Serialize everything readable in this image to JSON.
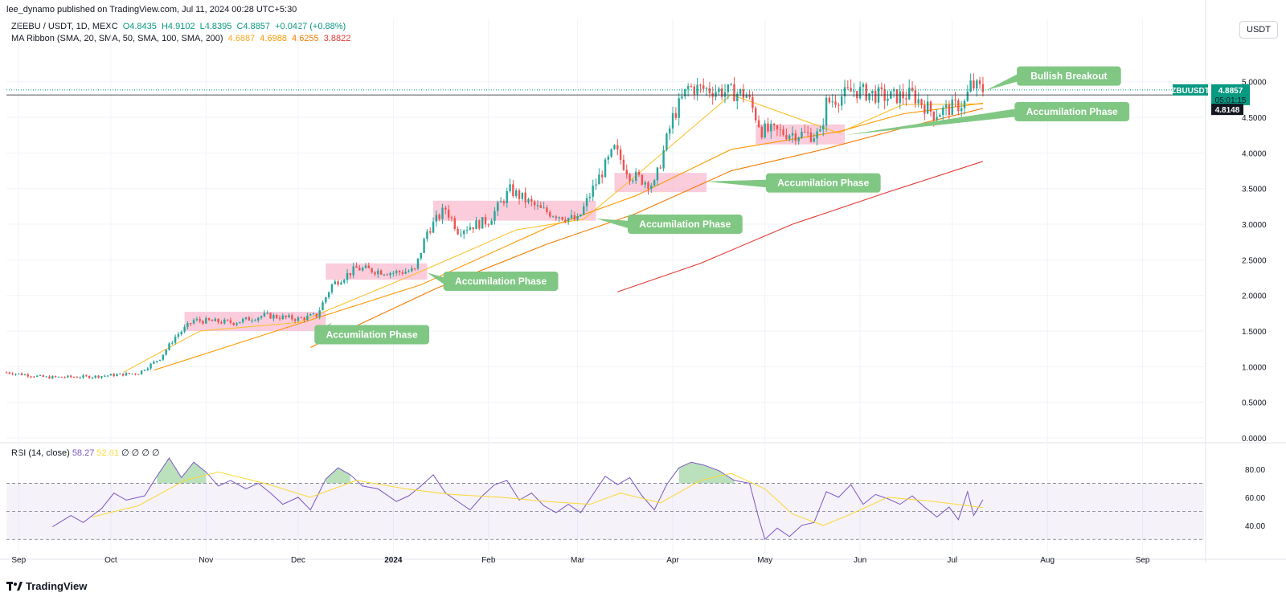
{
  "header": {
    "published": "lee_dynamo published on TradingView.com, Jul 11, 2024 00:28 UTC+5:30"
  },
  "legend": {
    "symbol": "ZEEBU / USDT, 1D, MEXC",
    "o": "O4.8435",
    "h": "H4.9102",
    "l": "L4.8395",
    "c": "C4.8857",
    "chg": "+0.0427 (+0.88%)",
    "ma_title": "MA Ribbon (SMA, 20, SMA, 50, SMA, 100, SMA, 200)",
    "ma_values": [
      "4.6887",
      "4.6988",
      "4.6255",
      "3.8822"
    ],
    "ma_colors": [
      "#f9a825",
      "#ff9800",
      "#f57c00",
      "#e53935"
    ]
  },
  "rsi_legend": {
    "title": "RSI (14, close)",
    "rsi": "58.27",
    "ma": "52.61",
    "placeholders": [
      "∅",
      "∅",
      "∅",
      "∅"
    ]
  },
  "currency_button": "USDT",
  "price_tags": {
    "symbol": "ZBUUSDT",
    "price": "4.8857",
    "timer": "05:01:15",
    "level": "4.8148"
  },
  "footer": {
    "logo_text": "TradingView"
  },
  "colors": {
    "up": "#26a69a",
    "down": "#ef5350",
    "annotation": "#81c784",
    "box": "#f8bbd0",
    "rsi": "#7e57c2",
    "rsi_ma": "#fdd835",
    "tag_green": "#089981"
  },
  "chart_data": [
    {
      "type": "candlestick",
      "title": "ZEEBU / USDT, 1D, MEXC",
      "y_ticks": [
        "0.0000",
        "0.5000",
        "1.0000",
        "1.5000",
        "2.0000",
        "2.5000",
        "3.0000",
        "3.5000",
        "4.0000",
        "4.5000",
        "5.0000"
      ],
      "x_ticks": [
        "Sep",
        "Oct",
        "Nov",
        "Dec",
        "2024",
        "Feb",
        "Mar",
        "Apr",
        "May",
        "Jun",
        "Jul",
        "Aug",
        "Sep"
      ],
      "ylim": [
        0,
        5.2
      ],
      "x_start": "2023-08-28",
      "x_end": "2024-09-21",
      "grid": true,
      "closes": [
        [
          "2023-08-28",
          0.92
        ],
        [
          "2023-09-10",
          0.85
        ],
        [
          "2023-09-25",
          0.86
        ],
        [
          "2023-10-10",
          0.91
        ],
        [
          "2023-10-17",
          1.12
        ],
        [
          "2023-10-22",
          1.42
        ],
        [
          "2023-10-28",
          1.65
        ],
        [
          "2023-11-10",
          1.62
        ],
        [
          "2023-11-20",
          1.72
        ],
        [
          "2023-12-01",
          1.67
        ],
        [
          "2023-12-07",
          1.72
        ],
        [
          "2023-12-12",
          2.15
        ],
        [
          "2023-12-20",
          2.38
        ],
        [
          "2024-01-01",
          2.32
        ],
        [
          "2024-01-08",
          2.35
        ],
        [
          "2024-01-12",
          2.9
        ],
        [
          "2024-01-18",
          3.22
        ],
        [
          "2024-01-22",
          2.92
        ],
        [
          "2024-02-01",
          3.05
        ],
        [
          "2024-02-08",
          3.48
        ],
        [
          "2024-02-18",
          3.2
        ],
        [
          "2024-03-01",
          3.05
        ],
        [
          "2024-03-06",
          3.5
        ],
        [
          "2024-03-13",
          4.05
        ],
        [
          "2024-03-18",
          3.7
        ],
        [
          "2024-03-26",
          3.55
        ],
        [
          "2024-04-01",
          4.5
        ],
        [
          "2024-04-06",
          4.92
        ],
        [
          "2024-04-15",
          4.88
        ],
        [
          "2024-04-25",
          4.82
        ],
        [
          "2024-04-30",
          4.32
        ],
        [
          "2024-05-08",
          4.28
        ],
        [
          "2024-05-19",
          4.25
        ],
        [
          "2024-05-21",
          4.7
        ],
        [
          "2024-05-30",
          4.88
        ],
        [
          "2024-06-10",
          4.78
        ],
        [
          "2024-06-18",
          4.82
        ],
        [
          "2024-06-25",
          4.55
        ],
        [
          "2024-07-05",
          4.7
        ],
        [
          "2024-07-07",
          4.95
        ],
        [
          "2024-07-11",
          4.8857
        ]
      ],
      "series": [
        {
          "name": "SMA 20",
          "points": [
            [
              "2023-10-05",
              0.92
            ],
            [
              "2023-10-30",
              1.5
            ],
            [
              "2023-12-01",
              1.62
            ],
            [
              "2024-01-08",
              2.3
            ],
            [
              "2024-02-10",
              2.92
            ],
            [
              "2024-03-03",
              3.07
            ],
            [
              "2024-03-20",
              3.68
            ],
            [
              "2024-04-20",
              4.82
            ],
            [
              "2024-05-25",
              4.28
            ],
            [
              "2024-06-15",
              4.68
            ],
            [
              "2024-07-11",
              4.6887
            ]
          ]
        },
        {
          "name": "SMA 50",
          "points": [
            [
              "2023-10-15",
              0.95
            ],
            [
              "2023-12-01",
              1.6
            ],
            [
              "2024-01-10",
              2.15
            ],
            [
              "2024-02-20",
              2.95
            ],
            [
              "2024-03-20",
              3.4
            ],
            [
              "2024-04-20",
              4.05
            ],
            [
              "2024-05-25",
              4.3
            ],
            [
              "2024-06-15",
              4.55
            ],
            [
              "2024-07-11",
              4.6988
            ]
          ]
        },
        {
          "name": "SMA 100",
          "points": [
            [
              "2023-12-05",
              1.27
            ],
            [
              "2024-01-15",
              2.1
            ],
            [
              "2024-02-20",
              2.72
            ],
            [
              "2024-03-20",
              3.15
            ],
            [
              "2024-04-20",
              3.75
            ],
            [
              "2024-05-20",
              4.05
            ],
            [
              "2024-06-15",
              4.35
            ],
            [
              "2024-07-11",
              4.6255
            ]
          ]
        },
        {
          "name": "SMA 200",
          "points": [
            [
              "2024-03-14",
              2.05
            ],
            [
              "2024-04-10",
              2.45
            ],
            [
              "2024-05-10",
              3.0
            ],
            [
              "2024-06-10",
              3.45
            ],
            [
              "2024-07-11",
              3.8822
            ]
          ]
        }
      ],
      "boxes": [
        {
          "x1": "2023-10-25",
          "x2": "2023-12-10",
          "y1": 1.5,
          "y2": 1.77
        },
        {
          "x1": "2023-12-10",
          "x2": "2024-01-12",
          "y1": 2.22,
          "y2": 2.45
        },
        {
          "x1": "2024-01-14",
          "x2": "2024-03-07",
          "y1": 3.05,
          "y2": 3.33
        },
        {
          "x1": "2024-03-13",
          "x2": "2024-04-12",
          "y1": 3.45,
          "y2": 3.72
        },
        {
          "x1": "2024-04-28",
          "x2": "2024-05-27",
          "y1": 4.12,
          "y2": 4.4
        }
      ],
      "annotations": [
        {
          "text": "Accumilation Phase",
          "price": 1.45,
          "date": "2023-12-25",
          "target_date": "2023-12-12",
          "target_price": 1.62
        },
        {
          "text": "Accumilation Phase",
          "price": 2.2,
          "date": "2024-02-05",
          "target_date": "2024-01-12",
          "target_price": 2.32
        },
        {
          "text": "Accumilation Phase",
          "price": 3.0,
          "date": "2024-04-05",
          "target_date": "2024-03-07",
          "target_price": 3.08
        },
        {
          "text": "Accumilation Phase",
          "price": 3.58,
          "date": "2024-05-20",
          "target_date": "2024-04-12",
          "target_price": 3.6
        },
        {
          "text": "Accumilation Phase",
          "price": 4.58,
          "date": "2024-08-09",
          "target_date": "2024-05-27",
          "target_price": 4.25
        },
        {
          "text": "Bullish Breakout",
          "price": 5.08,
          "date": "2024-08-08",
          "target_date": "2024-07-12",
          "target_price": 4.88
        }
      ],
      "current_price": 4.8857,
      "level": 4.8148
    },
    {
      "type": "line",
      "title": "RSI (14, close)",
      "y_ticks": [
        "40.00",
        "60.00",
        "80.00"
      ],
      "ylim": [
        25,
        92
      ],
      "bands": [
        30,
        50,
        70
      ],
      "series": [
        {
          "name": "RSI",
          "points": [
            [
              "2023-09-12",
              39
            ],
            [
              "2023-09-18",
              47
            ],
            [
              "2023-09-22",
              42
            ],
            [
              "2023-09-28",
              52
            ],
            [
              "2023-10-02",
              63
            ],
            [
              "2023-10-06",
              58
            ],
            [
              "2023-10-12",
              61
            ],
            [
              "2023-10-16",
              75
            ],
            [
              "2023-10-20",
              88
            ],
            [
              "2023-10-24",
              74
            ],
            [
              "2023-10-28",
              85
            ],
            [
              "2023-11-01",
              78
            ],
            [
              "2023-11-05",
              68
            ],
            [
              "2023-11-09",
              72
            ],
            [
              "2023-11-14",
              66
            ],
            [
              "2023-11-18",
              70
            ],
            [
              "2023-11-22",
              63
            ],
            [
              "2023-11-26",
              55
            ],
            [
              "2023-12-01",
              60
            ],
            [
              "2023-12-05",
              51
            ],
            [
              "2023-12-10",
              73
            ],
            [
              "2023-12-14",
              81
            ],
            [
              "2023-12-18",
              76
            ],
            [
              "2023-12-22",
              68
            ],
            [
              "2023-12-27",
              66
            ],
            [
              "2024-01-02",
              57
            ],
            [
              "2024-01-06",
              61
            ],
            [
              "2024-01-10",
              68
            ],
            [
              "2024-01-14",
              76
            ],
            [
              "2024-01-18",
              63
            ],
            [
              "2024-01-22",
              57
            ],
            [
              "2024-01-26",
              51
            ],
            [
              "2024-01-30",
              61
            ],
            [
              "2024-02-03",
              69
            ],
            [
              "2024-02-07",
              72
            ],
            [
              "2024-02-11",
              58
            ],
            [
              "2024-02-15",
              63
            ],
            [
              "2024-02-19",
              54
            ],
            [
              "2024-02-23",
              49
            ],
            [
              "2024-02-27",
              55
            ],
            [
              "2024-03-02",
              49
            ],
            [
              "2024-03-06",
              62
            ],
            [
              "2024-03-10",
              75
            ],
            [
              "2024-03-14",
              69
            ],
            [
              "2024-03-18",
              74
            ],
            [
              "2024-03-22",
              61
            ],
            [
              "2024-03-26",
              51
            ],
            [
              "2024-03-30",
              69
            ],
            [
              "2024-04-03",
              81
            ],
            [
              "2024-04-07",
              85
            ],
            [
              "2024-04-11",
              83
            ],
            [
              "2024-04-16",
              79
            ],
            [
              "2024-04-21",
              72
            ],
            [
              "2024-04-26",
              70
            ],
            [
              "2024-04-29",
              45
            ],
            [
              "2024-05-01",
              30
            ],
            [
              "2024-05-05",
              38
            ],
            [
              "2024-05-09",
              32
            ],
            [
              "2024-05-13",
              40
            ],
            [
              "2024-05-17",
              42
            ],
            [
              "2024-05-21",
              64
            ],
            [
              "2024-05-25",
              60
            ],
            [
              "2024-05-29",
              69
            ],
            [
              "2024-06-02",
              55
            ],
            [
              "2024-06-06",
              62
            ],
            [
              "2024-06-10",
              59
            ],
            [
              "2024-06-14",
              55
            ],
            [
              "2024-06-18",
              61
            ],
            [
              "2024-06-22",
              53
            ],
            [
              "2024-06-26",
              46
            ],
            [
              "2024-06-30",
              53
            ],
            [
              "2024-07-03",
              44
            ],
            [
              "2024-07-06",
              64
            ],
            [
              "2024-07-08",
              47
            ],
            [
              "2024-07-11",
              58.27
            ]
          ]
        },
        {
          "name": "RSI MA",
          "points": [
            [
              "2023-09-25",
              46
            ],
            [
              "2023-10-10",
              54
            ],
            [
              "2023-10-25",
              72
            ],
            [
              "2023-11-05",
              78
            ],
            [
              "2023-11-20",
              70
            ],
            [
              "2023-12-05",
              60
            ],
            [
              "2023-12-20",
              72
            ],
            [
              "2024-01-05",
              66
            ],
            [
              "2024-01-20",
              62
            ],
            [
              "2024-02-05",
              60
            ],
            [
              "2024-02-20",
              57
            ],
            [
              "2024-03-05",
              55
            ],
            [
              "2024-03-15",
              63
            ],
            [
              "2024-03-28",
              56
            ],
            [
              "2024-04-10",
              72
            ],
            [
              "2024-04-20",
              77
            ],
            [
              "2024-05-01",
              66
            ],
            [
              "2024-05-10",
              48
            ],
            [
              "2024-05-20",
              40
            ],
            [
              "2024-05-28",
              47
            ],
            [
              "2024-06-10",
              60
            ],
            [
              "2024-06-25",
              57
            ],
            [
              "2024-07-11",
              52.61
            ]
          ]
        }
      ]
    }
  ]
}
